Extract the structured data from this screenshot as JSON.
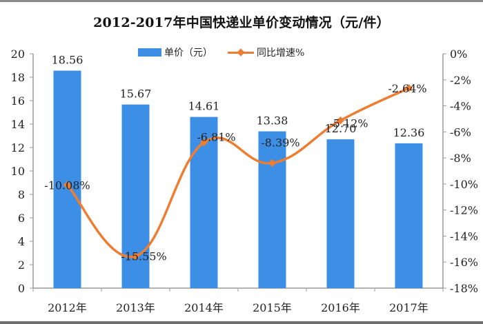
{
  "chart_data": {
    "type": "bar+line",
    "title": "2012-2017年中国快递业单价变动情况（元/件）",
    "categories": [
      "2012年",
      "2013年",
      "2014年",
      "2015年",
      "2016年",
      "2017年"
    ],
    "series": [
      {
        "name": "单价（元）",
        "type": "bar",
        "axis": "left",
        "color": "#3d8fe6",
        "values": [
          18.56,
          15.67,
          14.61,
          13.38,
          12.7,
          12.36
        ],
        "labels": [
          "18.56",
          "15.67",
          "14.61",
          "13.38",
          "12.70",
          "12.36"
        ]
      },
      {
        "name": "同比增速%",
        "type": "line",
        "axis": "right",
        "color": "#ed7d31",
        "values": [
          -10.08,
          -15.55,
          -6.81,
          -8.39,
          -5.12,
          -2.64
        ],
        "labels": [
          "-10.08%",
          "-15.55%",
          "-6.81%",
          "-8.39%",
          "-5.12%",
          "-2.64%"
        ]
      }
    ],
    "ylabel_left": "",
    "ylabel_right": "",
    "ylim_left": [
      0,
      20
    ],
    "ylim_right": [
      -18,
      0
    ],
    "left_ticks": [
      "0",
      "2",
      "4",
      "6",
      "8",
      "10",
      "12",
      "14",
      "16",
      "18",
      "20"
    ],
    "right_ticks": [
      "0%",
      "-2%",
      "-4%",
      "-6%",
      "-8%",
      "-10%",
      "-12%",
      "-14%",
      "-16%",
      "-18%"
    ],
    "legend_position": "top",
    "grid": false
  },
  "legend": {
    "bar_label": "单价（元）",
    "line_label": "同比增速%"
  }
}
